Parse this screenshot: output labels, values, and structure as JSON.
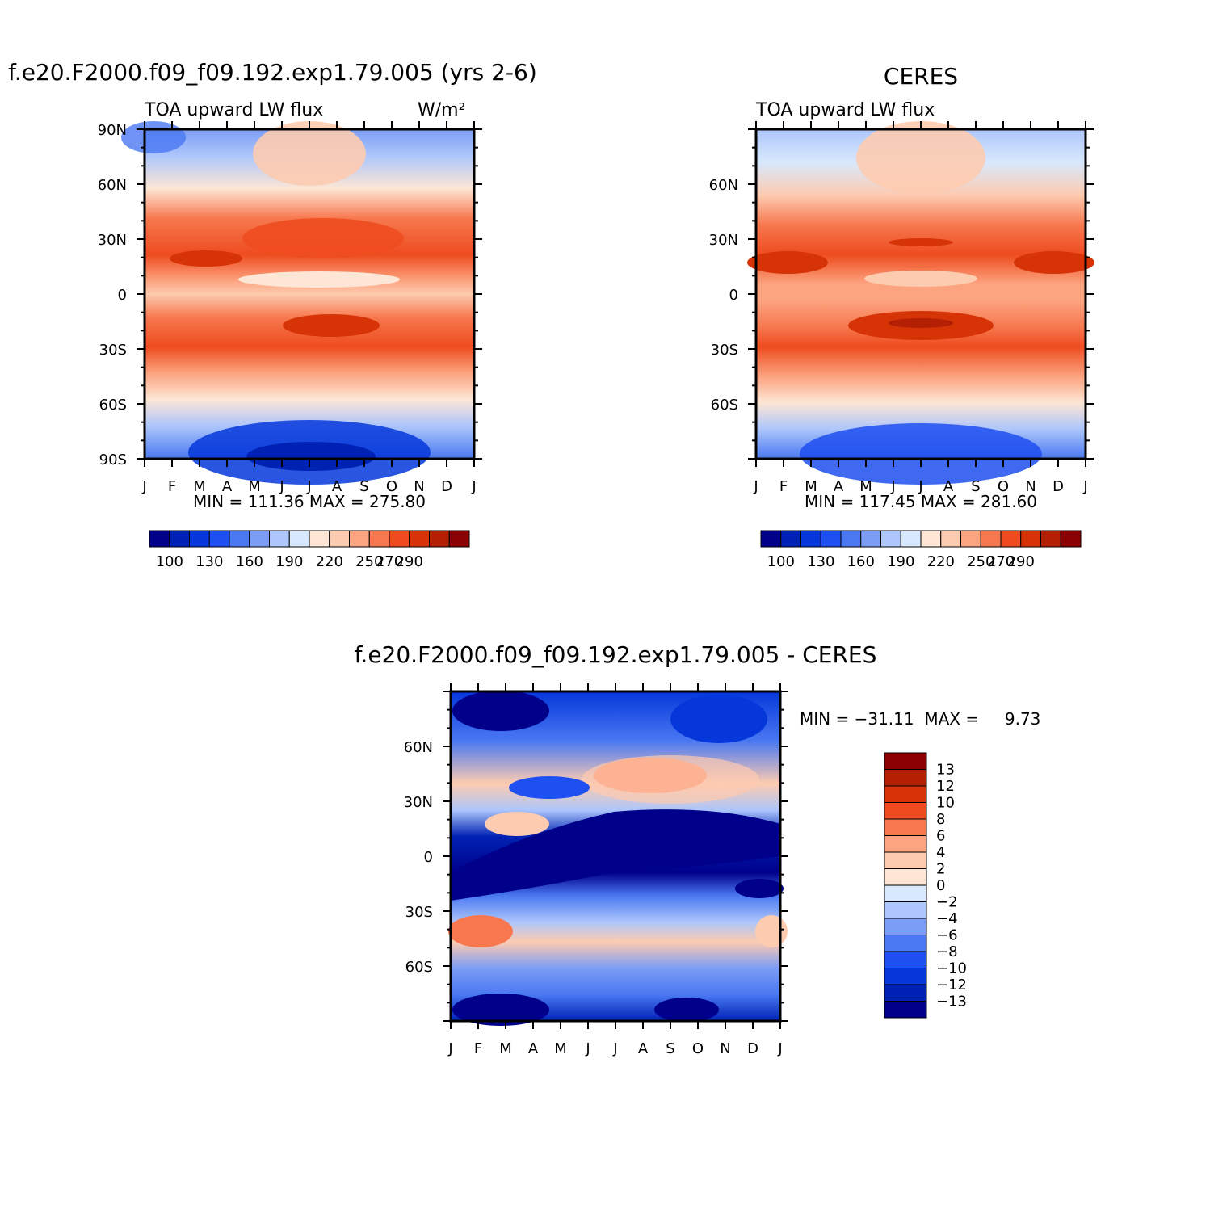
{
  "months": [
    "J",
    "F",
    "M",
    "A",
    "M",
    "J",
    "J",
    "A",
    "S",
    "O",
    "N",
    "D",
    "J"
  ],
  "panel1": {
    "case_title": "f.e20.F2000.f09_f09.192.exp1.79.005 (yrs 2-6)",
    "variable": "TOA upward LW flux",
    "units": "W/m²",
    "stats": "MIN = 111.36  MAX = 275.80",
    "ylabels": [
      "90N",
      "60N",
      "30N",
      "0",
      "30S",
      "60S",
      "90S"
    ]
  },
  "panel2": {
    "case_title": "CERES",
    "variable": "TOA upward LW flux",
    "stats": "MIN = 117.45  MAX = 281.60",
    "ylabels": [
      "60N",
      "30N",
      "0",
      "30S",
      "60S"
    ]
  },
  "panel3": {
    "case_title": "f.e20.F2000.f09_f09.192.exp1.79.005 - CERES",
    "stats": "MIN = −31.11  MAX =     9.73",
    "ylabels": [
      "60N",
      "30N",
      "0",
      "30S",
      "60S"
    ]
  },
  "colorbar_abs": {
    "colors": [
      "#00008b",
      "#0022b4",
      "#0537da",
      "#1e4ff0",
      "#4a78f2",
      "#7c9df6",
      "#adc6fb",
      "#d8e8fd",
      "#fde6d5",
      "#fdcbb0",
      "#fca37f",
      "#f7784f",
      "#ee4c1f",
      "#d63406",
      "#b42004",
      "#8b0000"
    ],
    "labels": [
      "100",
      "130",
      "160",
      "190",
      "220",
      "250",
      "270",
      "290"
    ]
  },
  "colorbar_diff": {
    "colors": [
      "#8b0000",
      "#b42004",
      "#d63406",
      "#ee4c1f",
      "#f7784f",
      "#fca37f",
      "#fdcbb0",
      "#fde6d5",
      "#d8e8fd",
      "#adc6fb",
      "#7c9df6",
      "#4a78f2",
      "#1e4ff0",
      "#0537da",
      "#0022b4",
      "#00008b"
    ],
    "labels": [
      "13",
      "12",
      "10",
      "8",
      "6",
      "4",
      "2",
      "0",
      "−2",
      "−4",
      "−6",
      "−8",
      "−10",
      "−12",
      "−13"
    ]
  },
  "chart_data": [
    {
      "type": "heatmap",
      "title": "f.e20.F2000.f09_f09.192.exp1.79.005 (yrs 2-6)",
      "subtitle": "TOA upward LW flux",
      "units": "W/m²",
      "x": [
        "J",
        "F",
        "M",
        "A",
        "M",
        "J",
        "J",
        "A",
        "S",
        "O",
        "N",
        "D",
        "J"
      ],
      "y_range": [
        -90,
        90
      ],
      "ylabels": [
        "90N",
        "60N",
        "30N",
        "0",
        "30S",
        "60S",
        "90S"
      ],
      "min": 111.36,
      "max": 275.8,
      "colorbar_levels": [
        100,
        130,
        160,
        190,
        220,
        250,
        270,
        290
      ],
      "latitude_profile": {
        "lat": [
          90,
          75,
          60,
          45,
          30,
          15,
          0,
          -15,
          -30,
          -45,
          -60,
          -75,
          -90
        ],
        "value": [
          180,
          200,
          215,
          238,
          262,
          272,
          235,
          262,
          262,
          238,
          218,
          175,
          140
        ]
      }
    },
    {
      "type": "heatmap",
      "title": "CERES",
      "subtitle": "TOA upward LW flux",
      "x": [
        "J",
        "F",
        "M",
        "A",
        "M",
        "J",
        "J",
        "A",
        "S",
        "O",
        "N",
        "D",
        "J"
      ],
      "y_range": [
        -90,
        90
      ],
      "ylabels": [
        "60N",
        "30N",
        "0",
        "30S",
        "60S"
      ],
      "min": 117.45,
      "max": 281.6,
      "colorbar_levels": [
        100,
        130,
        160,
        190,
        220,
        250,
        270,
        290
      ],
      "latitude_profile": {
        "lat": [
          90,
          75,
          60,
          45,
          30,
          15,
          0,
          -15,
          -30,
          -45,
          -60,
          -75,
          -90
        ],
        "value": [
          185,
          205,
          220,
          240,
          265,
          276,
          240,
          265,
          268,
          242,
          222,
          180,
          145
        ]
      }
    },
    {
      "type": "heatmap",
      "title": "f.e20.F2000.f09_f09.192.exp1.79.005 - CERES",
      "x": [
        "J",
        "F",
        "M",
        "A",
        "M",
        "J",
        "J",
        "A",
        "S",
        "O",
        "N",
        "D",
        "J"
      ],
      "y_range": [
        -90,
        90
      ],
      "ylabels": [
        "60N",
        "30N",
        "0",
        "30S",
        "60S"
      ],
      "min": -31.11,
      "max": 9.73,
      "colorbar_levels": [
        13,
        12,
        10,
        8,
        6,
        4,
        2,
        0,
        -2,
        -4,
        -6,
        -8,
        -10,
        -12,
        -13
      ]
    }
  ]
}
